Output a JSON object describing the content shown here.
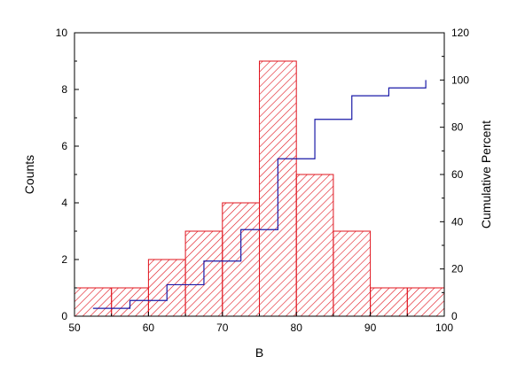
{
  "chart_data": {
    "type": "bar",
    "subtype": "histogram-with-cumulative-percent",
    "title": "",
    "xlabel": "B",
    "ylabel": "Counts",
    "y2label": "Cumulative Percent",
    "xlim": [
      50,
      100
    ],
    "ylim": [
      0,
      10
    ],
    "y2lim": [
      0,
      120
    ],
    "xticks": [
      50,
      60,
      70,
      80,
      90,
      100
    ],
    "yticks": [
      0,
      2,
      4,
      6,
      8,
      10
    ],
    "y2ticks": [
      0,
      20,
      40,
      60,
      80,
      100,
      120
    ],
    "grid": false,
    "bins": [
      {
        "start": 50,
        "end": 55,
        "count": 1
      },
      {
        "start": 55,
        "end": 60,
        "count": 1
      },
      {
        "start": 60,
        "end": 65,
        "count": 2
      },
      {
        "start": 65,
        "end": 70,
        "count": 3
      },
      {
        "start": 70,
        "end": 75,
        "count": 4
      },
      {
        "start": 75,
        "end": 80,
        "count": 9
      },
      {
        "start": 80,
        "end": 85,
        "count": 5
      },
      {
        "start": 85,
        "end": 90,
        "count": 3
      },
      {
        "start": 90,
        "end": 95,
        "count": 1
      },
      {
        "start": 95,
        "end": 100,
        "count": 1
      }
    ],
    "cumulative_percent": {
      "x": [
        52.5,
        57.5,
        62.5,
        67.5,
        72.5,
        77.5,
        82.5,
        87.5,
        92.5,
        97.5
      ],
      "values": [
        3.33,
        6.67,
        13.33,
        23.33,
        36.67,
        66.67,
        83.33,
        93.33,
        96.67,
        100
      ]
    },
    "colors": {
      "bar_edge": "#e0141e",
      "bar_hatch": "#e0141e",
      "cumulative_line": "#1a1aa8",
      "axis": "#000000"
    }
  }
}
